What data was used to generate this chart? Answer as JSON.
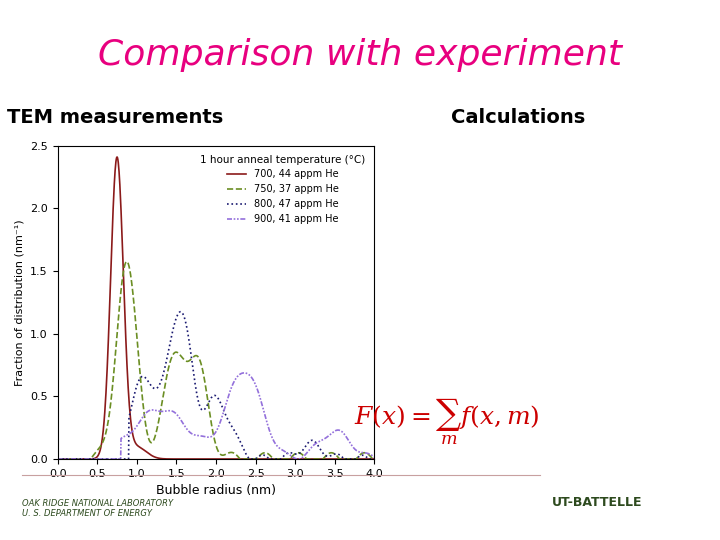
{
  "title": "Comparison with experiment",
  "title_color": "#e8007f",
  "title_fontsize": 26,
  "title_font": "Comic Sans MS",
  "left_label": "TEM measurements",
  "right_label": "Calculations",
  "label_fontsize": 14,
  "xlabel": "Bubble radius (nm)",
  "ylabel": "Fraction of distribution (nm⁻¹)",
  "xlim": [
    0,
    4.0
  ],
  "ylim": [
    0,
    2.5
  ],
  "xticks": [
    0,
    0.5,
    1.0,
    1.5,
    2.0,
    2.5,
    3.0,
    3.5,
    4.0
  ],
  "yticks": [
    0,
    0.5,
    1.0,
    1.5,
    2.0,
    2.5
  ],
  "legend_title": "1 hour anneal temperature (°C)",
  "legend_entries": [
    {
      "label": "700, 44 appm He",
      "color": "#8b1a1a",
      "linestyle": "solid"
    },
    {
      "label": "750, 37 appm He",
      "color": "#6b8e23",
      "linestyle": "dashed"
    },
    {
      "label": "800, 47 appm He",
      "color": "#191970",
      "linestyle": "dotted"
    },
    {
      "label": "900, 41 appm He",
      "color": "#9370db",
      "linestyle": "dashdot"
    }
  ],
  "background_color": "#ffffff",
  "footer_left": "Oak Ridge National Laboratory\nU. S. Department of Energy",
  "formula": "$F(x) = \\sum_m f(x,m)$",
  "formula_color": "#cc0000"
}
